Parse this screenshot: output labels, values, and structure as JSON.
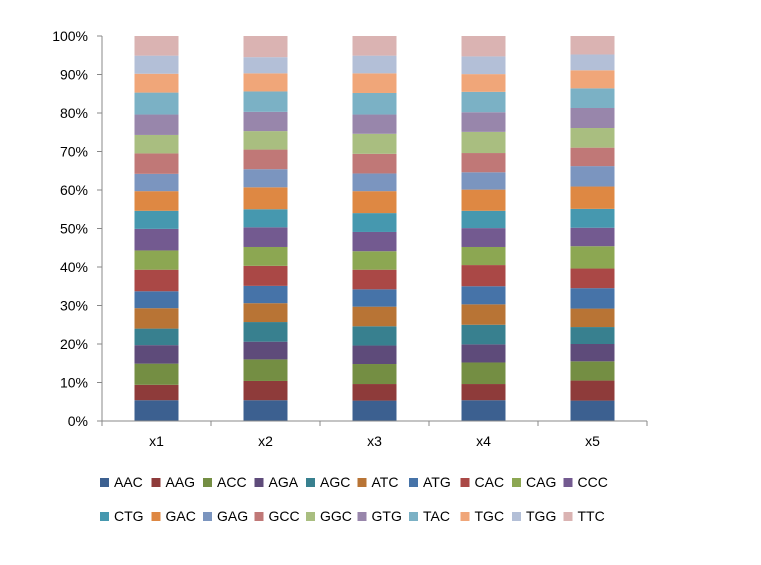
{
  "chart_data": {
    "type": "bar",
    "stacked": "percent",
    "title": "",
    "xlabel": "",
    "ylabel": "",
    "ylim": [
      0,
      100
    ],
    "yticks": [
      "0%",
      "10%",
      "20%",
      "30%",
      "40%",
      "50%",
      "60%",
      "70%",
      "80%",
      "90%",
      "100%"
    ],
    "categories": [
      "x1",
      "x2",
      "x3",
      "x4",
      "x5"
    ],
    "legend_position": "bottom",
    "grid": false,
    "series": [
      {
        "name": "AAC",
        "color": "#3C6090",
        "values": [
          5.4,
          5.4,
          5.3,
          5.4,
          5.3
        ]
      },
      {
        "name": "AAG",
        "color": "#8E3B3A",
        "values": [
          4.0,
          5.0,
          4.3,
          4.2,
          5.2
        ]
      },
      {
        "name": "ACC",
        "color": "#748E43",
        "values": [
          5.5,
          5.6,
          5.2,
          5.6,
          5.0
        ]
      },
      {
        "name": "AGA",
        "color": "#5E4B7A",
        "values": [
          4.8,
          4.6,
          4.8,
          4.7,
          4.5
        ]
      },
      {
        "name": "AGC",
        "color": "#38808F",
        "values": [
          4.3,
          5.1,
          5.0,
          5.1,
          4.4
        ]
      },
      {
        "name": "ATC",
        "color": "#B87435",
        "values": [
          5.3,
          4.9,
          5.1,
          5.3,
          4.8
        ]
      },
      {
        "name": "ATG",
        "color": "#4673A8",
        "values": [
          4.4,
          4.5,
          4.5,
          4.7,
          5.3
        ]
      },
      {
        "name": "CAC",
        "color": "#AA4846",
        "values": [
          5.6,
          5.2,
          5.1,
          5.5,
          5.1
        ]
      },
      {
        "name": "CAG",
        "color": "#8CA752",
        "values": [
          5.0,
          4.9,
          4.8,
          4.7,
          5.8
        ]
      },
      {
        "name": "CCC",
        "color": "#735A90",
        "values": [
          5.6,
          5.1,
          5.0,
          4.9,
          4.8
        ]
      },
      {
        "name": "CTG",
        "color": "#4698AF",
        "values": [
          4.7,
          4.7,
          4.9,
          4.5,
          4.9
        ]
      },
      {
        "name": "GAC",
        "color": "#DE8843",
        "values": [
          5.1,
          5.7,
          5.7,
          5.5,
          5.8
        ]
      },
      {
        "name": "GAG",
        "color": "#7B95BF",
        "values": [
          4.5,
          4.7,
          4.6,
          4.5,
          5.3
        ]
      },
      {
        "name": "GCC",
        "color": "#C07877",
        "values": [
          5.3,
          5.1,
          5.1,
          5.0,
          4.8
        ]
      },
      {
        "name": "GGC",
        "color": "#A9BE80",
        "values": [
          4.8,
          4.8,
          5.2,
          5.5,
          5.1
        ]
      },
      {
        "name": "GTG",
        "color": "#9886AB",
        "values": [
          5.3,
          5.0,
          5.0,
          5.1,
          5.2
        ]
      },
      {
        "name": "TAC",
        "color": "#7BB1C5",
        "values": [
          5.7,
          5.3,
          5.6,
          5.3,
          5.1
        ]
      },
      {
        "name": "TGC",
        "color": "#F0A679",
        "values": [
          4.9,
          4.7,
          5.1,
          4.6,
          4.7
        ]
      },
      {
        "name": "TGG",
        "color": "#B3BFD7",
        "values": [
          4.7,
          4.2,
          4.6,
          4.6,
          4.1
        ]
      },
      {
        "name": "TTC",
        "color": "#DAB3B2",
        "values": [
          5.1,
          5.5,
          5.1,
          5.3,
          4.8
        ]
      }
    ]
  }
}
